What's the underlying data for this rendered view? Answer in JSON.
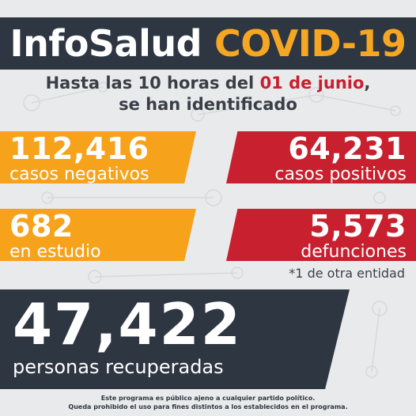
{
  "header": {
    "title_part1": "InfoSalud",
    "title_part2": "COVID-19"
  },
  "subtitle": {
    "line1_prefix": "Hasta las 10 horas del ",
    "line1_date": "01 de junio",
    "line1_suffix": ",",
    "line2": "se han identificado"
  },
  "stats": {
    "negativos": {
      "value": "112,416",
      "label": "casos negativos"
    },
    "positivos": {
      "value": "64,231",
      "label": "casos positivos"
    },
    "estudio": {
      "value": "682",
      "label": "en estudio"
    },
    "defunciones": {
      "value": "5,573",
      "label": "defunciones"
    },
    "defunciones_note": "*1 de otra entidad",
    "recuperadas": {
      "value": "47,422",
      "label": "personas recuperadas"
    }
  },
  "footer": {
    "line1": "Este programa es público ajeno a cualquier partido político.",
    "line2": "Queda prohibido el uso para fines distintos a los establecidos en el programa."
  },
  "colors": {
    "dark": "#2e3641",
    "orange": "#f7a21b",
    "red": "#c8202f",
    "background": "#e9eaec"
  }
}
